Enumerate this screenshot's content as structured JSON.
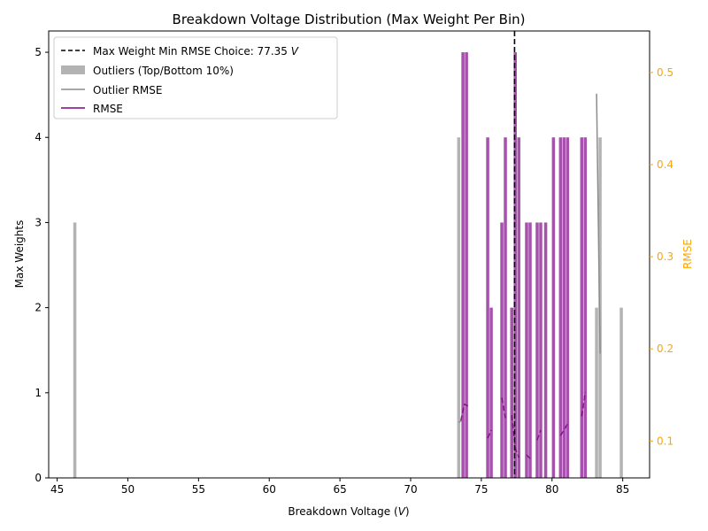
{
  "chart_data": {
    "type": "bar",
    "title": "Breakdown Voltage Distribution (Max Weight Per Bin)",
    "xlabel": "Breakdown Voltage (V)",
    "ylabel_left": "Max Weights",
    "ylabel_right": "RMSE",
    "xlim": [
      44.4,
      86.9
    ],
    "ylim_left": [
      0,
      5.25
    ],
    "ylim_right": [
      0.06,
      0.545
    ],
    "x_ticks": [
      45,
      50,
      55,
      60,
      65,
      70,
      75,
      80,
      85
    ],
    "y_ticks_left": [
      0,
      1,
      2,
      3,
      4,
      5
    ],
    "y_ticks_right": [
      0.1,
      0.2,
      0.3,
      0.4,
      0.5
    ],
    "grid": false,
    "legend_position": "top-left",
    "colors": {
      "outlier_bars": "#b3b3b3",
      "inlier_bars": "#a651ab",
      "rmse_line": "#800080",
      "outlier_rmse_line": "#8c8c8c",
      "choice_line": "#000000",
      "right_axis": "#ffa500"
    },
    "legend": [
      {
        "label": "Max Weight Min RMSE Choice: 77.35 V",
        "style": "dashed-black"
      },
      {
        "label": "Outliers (Top/Bottom 10%)",
        "style": "patch-gray"
      },
      {
        "label": "Outlier RMSE",
        "style": "line-gray"
      },
      {
        "label": "RMSE",
        "style": "line-purple"
      }
    ],
    "choice_x": 77.35,
    "outlier_bars": [
      {
        "x": 46.25,
        "value": 3
      },
      {
        "x": 73.4,
        "value": 4
      },
      {
        "x": 83.15,
        "value": 2
      },
      {
        "x": 83.4,
        "value": 4
      },
      {
        "x": 84.9,
        "value": 2
      }
    ],
    "inlier_bars": [
      {
        "x": 73.7,
        "value": 5
      },
      {
        "x": 73.95,
        "value": 5
      },
      {
        "x": 75.45,
        "value": 4
      },
      {
        "x": 75.7,
        "value": 2
      },
      {
        "x": 76.45,
        "value": 3
      },
      {
        "x": 76.7,
        "value": 4
      },
      {
        "x": 77.15,
        "value": 2
      },
      {
        "x": 77.4,
        "value": 5
      },
      {
        "x": 77.65,
        "value": 4
      },
      {
        "x": 78.2,
        "value": 3
      },
      {
        "x": 78.45,
        "value": 3
      },
      {
        "x": 78.95,
        "value": 3
      },
      {
        "x": 79.2,
        "value": 3
      },
      {
        "x": 79.55,
        "value": 3
      },
      {
        "x": 80.1,
        "value": 4
      },
      {
        "x": 80.6,
        "value": 4
      },
      {
        "x": 80.85,
        "value": 4
      },
      {
        "x": 81.1,
        "value": 4
      },
      {
        "x": 82.1,
        "value": 4
      },
      {
        "x": 82.35,
        "value": 4
      }
    ],
    "rmse_segments": [
      [
        [
          73.55,
          0.122
        ],
        [
          73.8,
          0.14
        ],
        [
          74.05,
          0.138
        ]
      ],
      [
        [
          75.45,
          0.103
        ],
        [
          75.7,
          0.112
        ]
      ],
      [
        [
          76.45,
          0.147
        ],
        [
          76.7,
          0.125
        ]
      ],
      [
        [
          77.15,
          0.128
        ],
        [
          77.4,
          0.092
        ],
        [
          77.65,
          0.082
        ]
      ],
      [
        [
          78.2,
          0.085
        ],
        [
          78.45,
          0.081
        ]
      ],
      [
        [
          78.95,
          0.101
        ],
        [
          79.2,
          0.112
        ]
      ],
      [
        [
          80.6,
          0.106
        ],
        [
          80.85,
          0.112
        ],
        [
          81.1,
          0.119
        ]
      ],
      [
        [
          82.1,
          0.127
        ],
        [
          82.35,
          0.153
        ]
      ]
    ],
    "outlier_rmse_segments": [
      [
        [
          73.4,
          0.12
        ],
        [
          73.55,
          0.122
        ]
      ],
      [
        [
          83.15,
          0.477
        ],
        [
          83.4,
          0.195
        ]
      ]
    ]
  }
}
